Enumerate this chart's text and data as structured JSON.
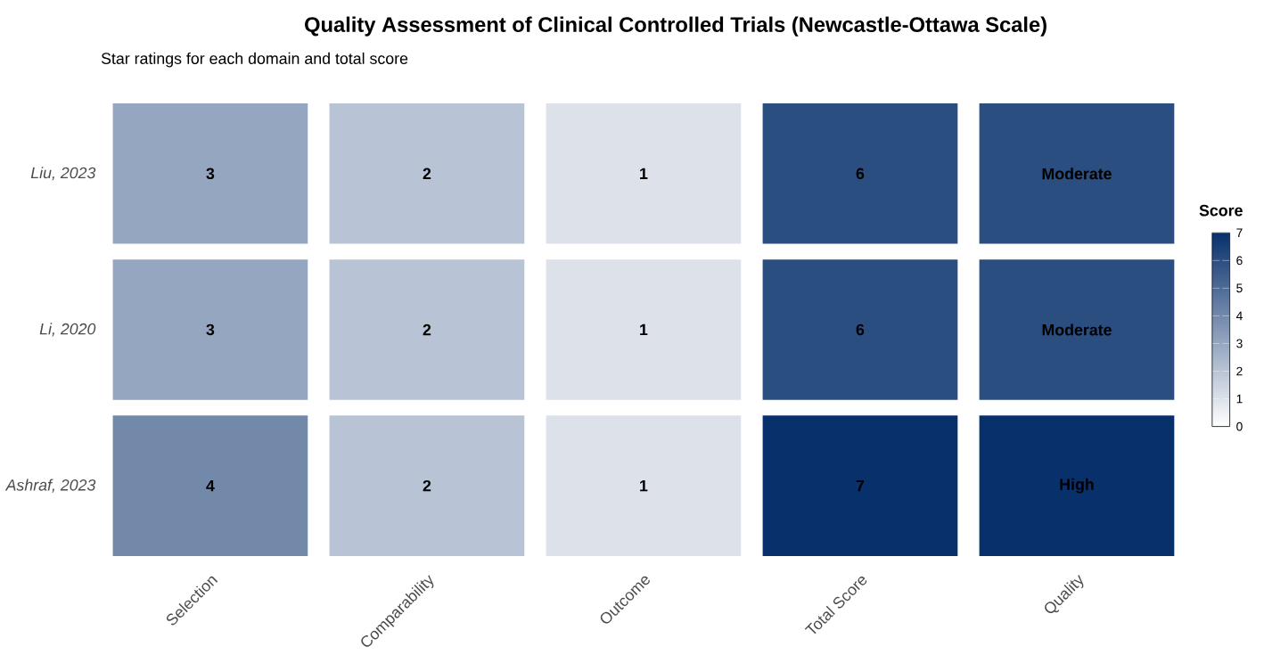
{
  "chart_data": {
    "type": "heatmap",
    "title": "Quality Assessment of Clinical Controlled Trials (Newcastle-Ottawa Scale)",
    "subtitle": "Star ratings for each domain and total score",
    "categories": [
      "Selection",
      "Comparability",
      "Outcome",
      "Total Score",
      "Quality"
    ],
    "y_categories": [
      "Liu, 2023",
      "Li, 2020",
      "Ashraf, 2023"
    ],
    "cells": [
      [
        3,
        2,
        1,
        6,
        6
      ],
      [
        3,
        2,
        1,
        6,
        6
      ],
      [
        4,
        2,
        1,
        7,
        7
      ]
    ],
    "cell_labels": [
      [
        "3",
        "2",
        "1",
        "6",
        "Moderate"
      ],
      [
        "3",
        "2",
        "1",
        "6",
        "Moderate"
      ],
      [
        "4",
        "2",
        "1",
        "7",
        "High"
      ]
    ],
    "clabel": "Score",
    "clim": [
      0,
      7
    ],
    "cticks": [
      0,
      1,
      2,
      3,
      4,
      5,
      6,
      7
    ]
  }
}
